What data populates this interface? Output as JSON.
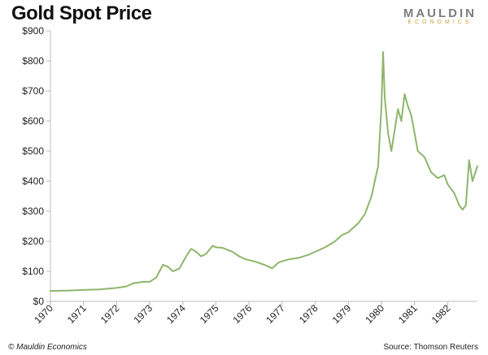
{
  "header": {
    "brand_main": "MAULDIN",
    "brand_sub": "ECONOMICS"
  },
  "footer": {
    "copyright": "© Mauldin Economics",
    "source": "Source: Thomson Reuters"
  },
  "colors": {
    "line": "#8fb56b",
    "axis": "#bbbbbb",
    "brand_gold": "#c8a33a",
    "brand_gray": "#7d7d7d"
  },
  "chart_data": {
    "type": "line",
    "title": "Gold Spot Price",
    "xlabel": "",
    "ylabel": "",
    "grid": false,
    "legend": "none",
    "xlim": [
      1970,
      1982.9
    ],
    "ylim": [
      0,
      900
    ],
    "y_ticks": [
      0,
      100,
      200,
      300,
      400,
      500,
      600,
      700,
      800,
      900
    ],
    "y_tick_labels": [
      "$0",
      "$100",
      "$200",
      "$300",
      "$400",
      "$500",
      "$600",
      "$700",
      "$800",
      "$900"
    ],
    "x_ticks": [
      1970,
      1971,
      1972,
      1973,
      1974,
      1975,
      1976,
      1977,
      1978,
      1979,
      1980,
      1981,
      1982
    ],
    "x_tick_labels": [
      "1970",
      "1971",
      "1972",
      "1973",
      "1974",
      "1975",
      "1976",
      "1977",
      "1978",
      "1979",
      "1980",
      "1981",
      "1982"
    ],
    "series": [
      {
        "values": [
          [
            1970.0,
            35
          ],
          [
            1970.5,
            36
          ],
          [
            1971.0,
            38
          ],
          [
            1971.5,
            40
          ],
          [
            1972.0,
            45
          ],
          [
            1972.3,
            50
          ],
          [
            1972.5,
            60
          ],
          [
            1972.8,
            65
          ],
          [
            1973.0,
            65
          ],
          [
            1973.2,
            80
          ],
          [
            1973.4,
            122
          ],
          [
            1973.55,
            115
          ],
          [
            1973.7,
            100
          ],
          [
            1973.9,
            110
          ],
          [
            1974.1,
            150
          ],
          [
            1974.25,
            175
          ],
          [
            1974.4,
            165
          ],
          [
            1974.55,
            150
          ],
          [
            1974.7,
            158
          ],
          [
            1974.9,
            185
          ],
          [
            1975.0,
            180
          ],
          [
            1975.2,
            178
          ],
          [
            1975.5,
            165
          ],
          [
            1975.7,
            150
          ],
          [
            1975.9,
            140
          ],
          [
            1976.2,
            132
          ],
          [
            1976.5,
            120
          ],
          [
            1976.7,
            110
          ],
          [
            1976.9,
            130
          ],
          [
            1977.2,
            140
          ],
          [
            1977.5,
            145
          ],
          [
            1977.8,
            155
          ],
          [
            1978.0,
            165
          ],
          [
            1978.3,
            180
          ],
          [
            1978.6,
            200
          ],
          [
            1978.8,
            220
          ],
          [
            1979.0,
            230
          ],
          [
            1979.3,
            260
          ],
          [
            1979.5,
            290
          ],
          [
            1979.7,
            350
          ],
          [
            1979.8,
            400
          ],
          [
            1979.9,
            450
          ],
          [
            1980.0,
            650
          ],
          [
            1980.05,
            830
          ],
          [
            1980.1,
            680
          ],
          [
            1980.2,
            560
          ],
          [
            1980.3,
            500
          ],
          [
            1980.5,
            640
          ],
          [
            1980.6,
            600
          ],
          [
            1980.7,
            690
          ],
          [
            1980.8,
            650
          ],
          [
            1980.9,
            620
          ],
          [
            1981.0,
            560
          ],
          [
            1981.1,
            500
          ],
          [
            1981.3,
            480
          ],
          [
            1981.5,
            430
          ],
          [
            1981.7,
            410
          ],
          [
            1981.9,
            420
          ],
          [
            1982.0,
            390
          ],
          [
            1982.2,
            360
          ],
          [
            1982.35,
            320
          ],
          [
            1982.45,
            305
          ],
          [
            1982.55,
            320
          ],
          [
            1982.65,
            470
          ],
          [
            1982.75,
            400
          ],
          [
            1982.9,
            450
          ]
        ]
      }
    ]
  }
}
